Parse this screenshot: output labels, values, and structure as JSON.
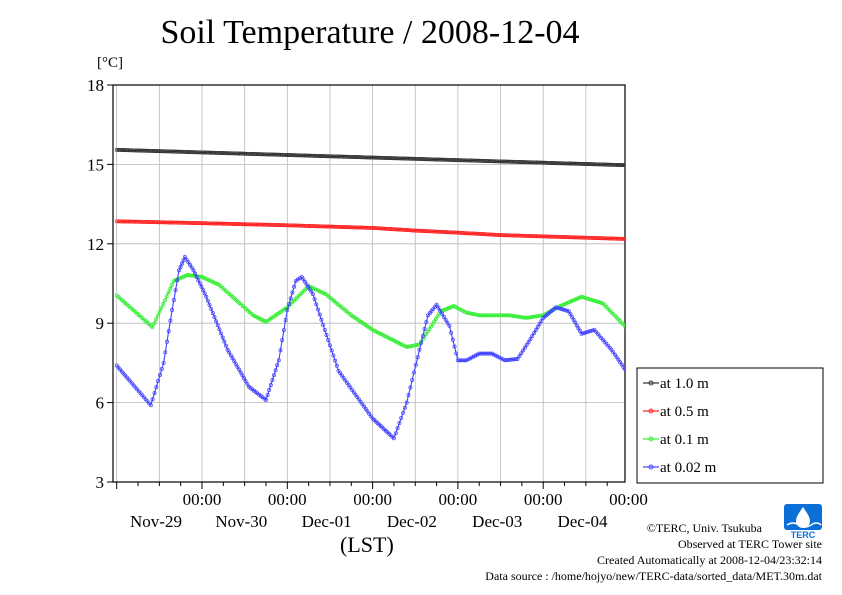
{
  "chart_data": {
    "type": "line",
    "title": "Soil Temperature / 2008-12-04",
    "ylabel": "[°C]",
    "xlabel": "(LST)",
    "ylim": [
      3,
      18
    ],
    "yticks": [
      3,
      6,
      9,
      12,
      15,
      18
    ],
    "x_tick_labels": [
      {
        "time": "00:00",
        "date": "Nov-29"
      },
      {
        "time": "00:00",
        "date": "Nov-30"
      },
      {
        "time": "00:00",
        "date": "Dec-01"
      },
      {
        "time": "00:00",
        "date": "Dec-02"
      },
      {
        "time": "00:00",
        "date": "Dec-03"
      },
      {
        "time": "00:00",
        "date": "Dec-04"
      }
    ],
    "grid": true,
    "legend_position": "right",
    "series": [
      {
        "name": "at 1.0 m",
        "color": "#303030",
        "points": [
          [
            -1.0,
            15.55
          ],
          [
            6.0,
            14.87
          ]
        ]
      },
      {
        "name": "at 0.5 m",
        "color": "#ff2020",
        "points": [
          [
            -1.0,
            12.85
          ],
          [
            0.0,
            12.78
          ],
          [
            1.0,
            12.7
          ],
          [
            2.0,
            12.6
          ],
          [
            2.5,
            12.5
          ],
          [
            3.0,
            12.42
          ],
          [
            3.5,
            12.33
          ],
          [
            4.0,
            12.28
          ],
          [
            5.0,
            12.18
          ],
          [
            6.0,
            12.05
          ]
        ]
      },
      {
        "name": "at 0.1 m",
        "color": "#33ee33",
        "points": [
          [
            -1.0,
            10.05
          ],
          [
            -0.58,
            8.85
          ],
          [
            -0.33,
            10.6
          ],
          [
            -0.17,
            10.82
          ],
          [
            0.0,
            10.75
          ],
          [
            0.2,
            10.45
          ],
          [
            0.6,
            9.3
          ],
          [
            0.75,
            9.05
          ],
          [
            1.0,
            9.6
          ],
          [
            1.25,
            10.4
          ],
          [
            1.45,
            10.1
          ],
          [
            1.75,
            9.3
          ],
          [
            2.0,
            8.75
          ],
          [
            2.4,
            8.1
          ],
          [
            2.55,
            8.2
          ],
          [
            2.8,
            9.45
          ],
          [
            2.95,
            9.65
          ],
          [
            3.1,
            9.4
          ],
          [
            3.25,
            9.3
          ],
          [
            3.6,
            9.3
          ],
          [
            3.8,
            9.2
          ],
          [
            4.0,
            9.3
          ],
          [
            4.2,
            9.65
          ],
          [
            4.45,
            10.0
          ],
          [
            4.7,
            9.75
          ],
          [
            5.0,
            8.75
          ],
          [
            5.15,
            8.6
          ],
          [
            5.4,
            9.9
          ],
          [
            5.55,
            10.4
          ],
          [
            5.85,
            9.9
          ],
          [
            6.2,
            8.9
          ],
          [
            6.4,
            8.35
          ],
          [
            6.6,
            9.2
          ],
          [
            6.8,
            10.2
          ],
          [
            7.0,
            10.05
          ],
          [
            7.1,
            9.8
          ]
        ]
      },
      {
        "name": "at 0.02 m",
        "color": "#4040ff",
        "points": [
          [
            -1.0,
            7.4
          ],
          [
            -0.6,
            5.9
          ],
          [
            -0.45,
            7.5
          ],
          [
            -0.35,
            9.5
          ],
          [
            -0.27,
            11.0
          ],
          [
            -0.2,
            11.5
          ],
          [
            -0.1,
            11.0
          ],
          [
            0.05,
            10.0
          ],
          [
            0.3,
            8.0
          ],
          [
            0.55,
            6.6
          ],
          [
            0.75,
            6.1
          ],
          [
            0.9,
            7.6
          ],
          [
            1.0,
            9.5
          ],
          [
            1.1,
            10.6
          ],
          [
            1.17,
            10.75
          ],
          [
            1.3,
            10.1
          ],
          [
            1.6,
            7.2
          ],
          [
            2.0,
            5.4
          ],
          [
            2.25,
            4.65
          ],
          [
            2.4,
            6.0
          ],
          [
            2.55,
            8.0
          ],
          [
            2.65,
            9.3
          ],
          [
            2.75,
            9.7
          ],
          [
            2.9,
            8.9
          ],
          [
            3.0,
            7.6
          ],
          [
            3.1,
            7.6
          ],
          [
            3.25,
            7.85
          ],
          [
            3.4,
            7.85
          ],
          [
            3.55,
            7.6
          ],
          [
            3.7,
            7.65
          ],
          [
            3.85,
            8.4
          ],
          [
            4.0,
            9.2
          ],
          [
            4.15,
            9.6
          ],
          [
            4.3,
            9.45
          ],
          [
            4.45,
            8.6
          ],
          [
            4.6,
            8.75
          ],
          [
            4.8,
            8.0
          ],
          [
            5.1,
            6.6
          ],
          [
            5.25,
            6.0
          ],
          [
            5.4,
            7.5
          ],
          [
            5.55,
            9.6
          ],
          [
            5.65,
            11.0
          ],
          [
            5.72,
            11.4
          ],
          [
            5.82,
            11.0
          ],
          [
            5.95,
            10.0
          ],
          [
            6.15,
            8.0
          ],
          [
            6.4,
            6.2
          ],
          [
            6.6,
            5.5
          ],
          [
            6.68,
            6.6
          ],
          [
            6.78,
            8.6
          ],
          [
            6.88,
            10.3
          ],
          [
            6.98,
            11.1
          ],
          [
            7.08,
            10.8
          ],
          [
            7.2,
            10.0
          ],
          [
            7.33,
            9.2
          ],
          [
            7.45,
            8.3
          ],
          [
            7.5,
            8.6
          ]
        ]
      }
    ]
  },
  "credits": {
    "line1": "©TERC, Univ. Tsukuba",
    "line2": "Observed at TERC Tower site",
    "line3": "Created Automatically at 2008-12-04/23:32:14",
    "line4": "Data source : /home/hojyo/new/TERC-data/sorted_data/MET.30m.dat"
  },
  "logo": {
    "text": "TERC",
    "color": "#0066cc"
  }
}
